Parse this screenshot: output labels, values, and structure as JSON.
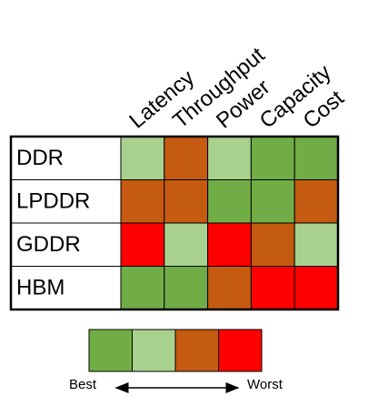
{
  "columns": [
    "Latency",
    "Throughput",
    "Power",
    "Capacity",
    "Cost"
  ],
  "rows": [
    {
      "label": "DDR",
      "levels": [
        1,
        2,
        1,
        0,
        0
      ]
    },
    {
      "label": "LPDDR",
      "levels": [
        2,
        2,
        0,
        0,
        2
      ]
    },
    {
      "label": "GDDR",
      "levels": [
        3,
        1,
        3,
        2,
        1
      ]
    },
    {
      "label": "HBM",
      "levels": [
        0,
        0,
        2,
        3,
        3
      ]
    }
  ],
  "legend": {
    "colors": [
      "#70ad47",
      "#a9d18e",
      "#c55a11",
      "#ff0000"
    ],
    "best": "Best",
    "worst": "Worst"
  }
}
